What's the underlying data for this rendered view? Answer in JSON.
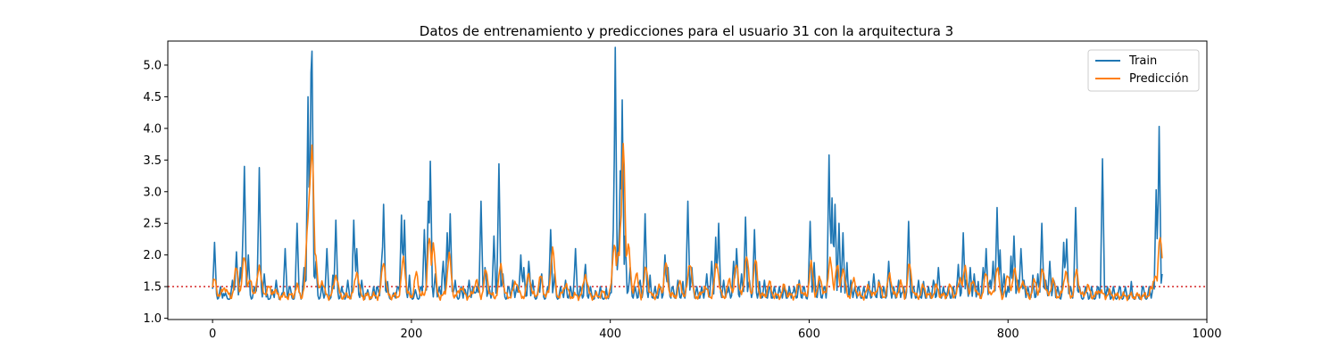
{
  "chart_data": {
    "type": "line",
    "title": "Datos de entrenamiento y predicciones para el usuario 31 con la arquitectura 3",
    "xlabel": "",
    "ylabel": "",
    "xlim": [
      -45,
      1000
    ],
    "ylim": [
      0.98,
      5.38
    ],
    "x_ticks": [
      0,
      200,
      400,
      600,
      800,
      1000
    ],
    "y_ticks": [
      1.0,
      1.5,
      2.0,
      2.5,
      3.0,
      3.5,
      4.0,
      4.5,
      5.0
    ],
    "y_tick_labels": [
      "1.0",
      "1.5",
      "2.0",
      "2.5",
      "3.0",
      "3.5",
      "4.0",
      "4.5",
      "5.0"
    ],
    "grid": false,
    "legend_position": "top-right",
    "reference_line": {
      "y": 1.5,
      "color": "#d62728",
      "style": "dotted"
    },
    "series": [
      {
        "name": "Train",
        "color": "#1f77b4",
        "baseline": 1.3,
        "x_max": 955,
        "peaks": [
          [
            2,
            2.2
          ],
          [
            8,
            1.5
          ],
          [
            13,
            1.4
          ],
          [
            20,
            1.6
          ],
          [
            24,
            2.05
          ],
          [
            28,
            1.8
          ],
          [
            31,
            2.6
          ],
          [
            32,
            3.4
          ],
          [
            36,
            2.0
          ],
          [
            42,
            1.5
          ],
          [
            46,
            1.9
          ],
          [
            47,
            3.38
          ],
          [
            52,
            1.7
          ],
          [
            60,
            1.45
          ],
          [
            64,
            1.6
          ],
          [
            70,
            1.4
          ],
          [
            73,
            2.1
          ],
          [
            78,
            1.5
          ],
          [
            85,
            2.5
          ],
          [
            92,
            1.8
          ],
          [
            96,
            4.5
          ],
          [
            99,
            4.8
          ],
          [
            100,
            5.22
          ],
          [
            104,
            1.9
          ],
          [
            110,
            1.5
          ],
          [
            115,
            2.1
          ],
          [
            121,
            1.6
          ],
          [
            124,
            2.55
          ],
          [
            130,
            1.5
          ],
          [
            136,
            1.6
          ],
          [
            142,
            2.55
          ],
          [
            145,
            2.1
          ],
          [
            150,
            1.6
          ],
          [
            156,
            1.45
          ],
          [
            162,
            1.5
          ],
          [
            166,
            1.5
          ],
          [
            170,
            1.9
          ],
          [
            172,
            2.8
          ],
          [
            176,
            1.5
          ],
          [
            182,
            1.4
          ],
          [
            186,
            1.5
          ],
          [
            190,
            2.63
          ],
          [
            193,
            2.55
          ],
          [
            198,
            1.6
          ],
          [
            204,
            1.45
          ],
          [
            210,
            1.5
          ],
          [
            213,
            2.4
          ],
          [
            217,
            2.85
          ],
          [
            219,
            3.48
          ],
          [
            224,
            1.7
          ],
          [
            228,
            1.5
          ],
          [
            232,
            1.9
          ],
          [
            236,
            2.35
          ],
          [
            239,
            2.65
          ],
          [
            244,
            1.6
          ],
          [
            250,
            1.5
          ],
          [
            254,
            1.45
          ],
          [
            258,
            1.6
          ],
          [
            262,
            1.5
          ],
          [
            266,
            1.5
          ],
          [
            270,
            2.85
          ],
          [
            274,
            1.8
          ],
          [
            278,
            1.5
          ],
          [
            283,
            2.3
          ],
          [
            288,
            3.44
          ],
          [
            292,
            1.7
          ],
          [
            298,
            1.5
          ],
          [
            302,
            1.6
          ],
          [
            306,
            1.5
          ],
          [
            310,
            2.0
          ],
          [
            313,
            1.8
          ],
          [
            318,
            1.9
          ],
          [
            322,
            1.6
          ],
          [
            328,
            1.5
          ],
          [
            331,
            1.7
          ],
          [
            337,
            1.5
          ],
          [
            340,
            2.4
          ],
          [
            344,
            1.7
          ],
          [
            350,
            1.5
          ],
          [
            355,
            1.6
          ],
          [
            360,
            1.5
          ],
          [
            365,
            2.1
          ],
          [
            370,
            1.5
          ],
          [
            375,
            1.85
          ],
          [
            380,
            1.5
          ],
          [
            386,
            1.4
          ],
          [
            390,
            1.5
          ],
          [
            396,
            1.4
          ],
          [
            400,
            1.4
          ],
          [
            403,
            2.4
          ],
          [
            405,
            5.28
          ],
          [
            408,
            2.0
          ],
          [
            410,
            3.33
          ],
          [
            412,
            4.45
          ],
          [
            415,
            2.3
          ],
          [
            420,
            1.8
          ],
          [
            425,
            1.5
          ],
          [
            430,
            1.6
          ],
          [
            435,
            2.65
          ],
          [
            440,
            1.6
          ],
          [
            445,
            1.5
          ],
          [
            450,
            1.5
          ],
          [
            455,
            2.0
          ],
          [
            458,
            1.8
          ],
          [
            463,
            1.5
          ],
          [
            468,
            1.6
          ],
          [
            473,
            1.5
          ],
          [
            478,
            2.85
          ],
          [
            482,
            1.8
          ],
          [
            487,
            1.5
          ],
          [
            492,
            1.5
          ],
          [
            497,
            1.7
          ],
          [
            502,
            1.9
          ],
          [
            506,
            2.2
          ],
          [
            509,
            2.5
          ],
          [
            514,
            1.6
          ],
          [
            519,
            1.5
          ],
          [
            524,
            1.9
          ],
          [
            527,
            2.1
          ],
          [
            532,
            1.7
          ],
          [
            536,
            2.6
          ],
          [
            540,
            1.6
          ],
          [
            545,
            2.4
          ],
          [
            550,
            1.5
          ],
          [
            555,
            1.6
          ],
          [
            560,
            1.5
          ],
          [
            565,
            1.5
          ],
          [
            570,
            1.5
          ],
          [
            575,
            1.5
          ],
          [
            580,
            1.5
          ],
          [
            585,
            1.5
          ],
          [
            590,
            1.6
          ],
          [
            595,
            1.5
          ],
          [
            601,
            2.53
          ],
          [
            605,
            1.8
          ],
          [
            610,
            1.6
          ],
          [
            615,
            1.5
          ],
          [
            620,
            3.58
          ],
          [
            623,
            2.9
          ],
          [
            626,
            2.8
          ],
          [
            630,
            2.5
          ],
          [
            634,
            2.35
          ],
          [
            638,
            1.8
          ],
          [
            642,
            1.6
          ],
          [
            646,
            1.5
          ],
          [
            650,
            1.5
          ],
          [
            655,
            1.5
          ],
          [
            660,
            1.5
          ],
          [
            665,
            1.7
          ],
          [
            670,
            1.6
          ],
          [
            675,
            1.5
          ],
          [
            680,
            1.9
          ],
          [
            685,
            1.5
          ],
          [
            690,
            1.6
          ],
          [
            695,
            1.5
          ],
          [
            700,
            2.53
          ],
          [
            705,
            1.5
          ],
          [
            710,
            1.6
          ],
          [
            715,
            1.5
          ],
          [
            720,
            1.5
          ],
          [
            725,
            1.6
          ],
          [
            730,
            1.8
          ],
          [
            735,
            1.5
          ],
          [
            740,
            1.5
          ],
          [
            745,
            1.5
          ],
          [
            750,
            1.85
          ],
          [
            755,
            2.35
          ],
          [
            758,
            1.6
          ],
          [
            762,
            1.8
          ],
          [
            766,
            1.7
          ],
          [
            770,
            1.5
          ],
          [
            775,
            1.8
          ],
          [
            778,
            2.1
          ],
          [
            782,
            1.6
          ],
          [
            785,
            1.9
          ],
          [
            789,
            2.75
          ],
          [
            792,
            2.0
          ],
          [
            796,
            1.7
          ],
          [
            800,
            1.5
          ],
          [
            803,
            1.9
          ],
          [
            806,
            2.3
          ],
          [
            810,
            1.6
          ],
          [
            813,
            2.1
          ],
          [
            816,
            1.6
          ],
          [
            820,
            1.5
          ],
          [
            825,
            1.6
          ],
          [
            830,
            1.7
          ],
          [
            834,
            2.5
          ],
          [
            838,
            1.6
          ],
          [
            842,
            1.9
          ],
          [
            846,
            1.6
          ],
          [
            850,
            1.5
          ],
          [
            856,
            2.2
          ],
          [
            859,
            2.25
          ],
          [
            863,
            1.5
          ],
          [
            868,
            2.75
          ],
          [
            872,
            1.5
          ],
          [
            878,
            1.5
          ],
          [
            884,
            1.5
          ],
          [
            890,
            1.5
          ],
          [
            895,
            3.52
          ],
          [
            900,
            1.5
          ],
          [
            906,
            1.5
          ],
          [
            912,
            1.5
          ],
          [
            918,
            1.5
          ],
          [
            924,
            1.5
          ],
          [
            930,
            1.4
          ],
          [
            936,
            1.5
          ],
          [
            942,
            1.5
          ],
          [
            946,
            1.5
          ],
          [
            949,
            3.03
          ],
          [
            952,
            4.03
          ],
          [
            955,
            1.7
          ]
        ]
      },
      {
        "name": "Predicción",
        "color": "#ff7f0e",
        "baseline": 1.35,
        "x_max": 955,
        "peaks": [
          [
            2,
            1.6
          ],
          [
            12,
            1.5
          ],
          [
            24,
            1.8
          ],
          [
            32,
            2.0
          ],
          [
            38,
            1.6
          ],
          [
            47,
            1.85
          ],
          [
            56,
            1.5
          ],
          [
            62,
            1.45
          ],
          [
            70,
            1.35
          ],
          [
            85,
            1.5
          ],
          [
            96,
            2.6
          ],
          [
            98,
            3.15
          ],
          [
            100,
            3.72
          ],
          [
            103,
            2.1
          ],
          [
            110,
            1.6
          ],
          [
            124,
            1.7
          ],
          [
            145,
            1.75
          ],
          [
            172,
            1.9
          ],
          [
            192,
            1.95
          ],
          [
            205,
            1.7
          ],
          [
            218,
            2.25
          ],
          [
            222,
            2.2
          ],
          [
            238,
            2.0
          ],
          [
            250,
            1.5
          ],
          [
            265,
            1.6
          ],
          [
            275,
            1.75
          ],
          [
            290,
            1.85
          ],
          [
            305,
            1.6
          ],
          [
            318,
            1.7
          ],
          [
            330,
            1.65
          ],
          [
            342,
            2.1
          ],
          [
            355,
            1.55
          ],
          [
            375,
            1.7
          ],
          [
            392,
            1.4
          ],
          [
            404,
            2.2
          ],
          [
            408,
            2.0
          ],
          [
            411,
            2.6
          ],
          [
            413,
            3.7
          ],
          [
            418,
            2.2
          ],
          [
            426,
            1.7
          ],
          [
            436,
            1.8
          ],
          [
            450,
            1.5
          ],
          [
            456,
            1.85
          ],
          [
            470,
            1.55
          ],
          [
            480,
            1.9
          ],
          [
            495,
            1.5
          ],
          [
            507,
            1.9
          ],
          [
            520,
            1.6
          ],
          [
            527,
            1.85
          ],
          [
            537,
            2.0
          ],
          [
            546,
            1.9
          ],
          [
            560,
            1.55
          ],
          [
            575,
            1.5
          ],
          [
            590,
            1.55
          ],
          [
            602,
            1.85
          ],
          [
            611,
            1.65
          ],
          [
            621,
            1.95
          ],
          [
            628,
            1.85
          ],
          [
            634,
            1.8
          ],
          [
            645,
            1.6
          ],
          [
            660,
            1.5
          ],
          [
            670,
            1.55
          ],
          [
            681,
            1.7
          ],
          [
            692,
            1.55
          ],
          [
            701,
            1.85
          ],
          [
            715,
            1.5
          ],
          [
            728,
            1.5
          ],
          [
            742,
            1.5
          ],
          [
            752,
            1.65
          ],
          [
            757,
            1.8
          ],
          [
            765,
            1.6
          ],
          [
            778,
            1.7
          ],
          [
            789,
            1.8
          ],
          [
            800,
            1.7
          ],
          [
            807,
            1.8
          ],
          [
            815,
            1.6
          ],
          [
            827,
            1.6
          ],
          [
            835,
            1.8
          ],
          [
            845,
            1.6
          ],
          [
            858,
            1.75
          ],
          [
            869,
            1.75
          ],
          [
            880,
            1.5
          ],
          [
            892,
            1.45
          ],
          [
            902,
            1.4
          ],
          [
            915,
            1.35
          ],
          [
            930,
            1.3
          ],
          [
            944,
            1.45
          ],
          [
            948,
            1.7
          ],
          [
            953,
            2.3
          ],
          [
            955,
            2.0
          ]
        ]
      }
    ]
  }
}
